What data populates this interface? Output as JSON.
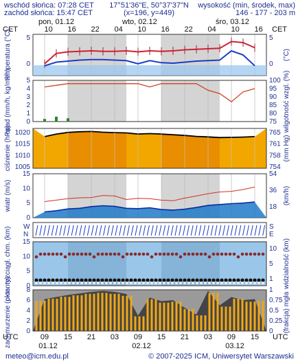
{
  "header": {
    "sunrise": "wschód słońca: 07:28 CET",
    "sunset": "zachód słońca: 15:47 CET",
    "coords": "17°51'36\"E, 50°37'37\"N",
    "grid": "(x=196, y=449)",
    "height_title": "wysokość (min, środek, max)",
    "height_values": "146 - 177 - 203 m"
  },
  "timezone_left": "CET",
  "timezone_right": "CET",
  "utc_left": "UTC",
  "utc_right": "UTC",
  "top_axis": {
    "days": [
      "pon, 01.12",
      "wto, 02.12",
      "śro, 03.12"
    ],
    "hours": [
      "10",
      "16",
      "22",
      "04",
      "10",
      "16",
      "22",
      "04",
      "10",
      "16"
    ]
  },
  "bottom_axis": {
    "hours": [
      "09",
      "15",
      "21",
      "03",
      "09",
      "15",
      "21",
      "03",
      "09",
      "15"
    ],
    "dates": [
      "01.12",
      "02.12",
      "03.12"
    ]
  },
  "footer": {
    "email": "meteo@icm.edu.pl",
    "copyright": "© 2007-2025 ICM, Uniwersytet Warszawski"
  },
  "colors": {
    "axis_text": "#1d2d8f",
    "temperature": "#cc2233",
    "dewpoint": "#1a3cc8",
    "pressure_fill": "#f2a600",
    "wind_fill": "#1f7ac8",
    "cloud_dark": "#444444",
    "precip_bar": "#f0a818",
    "humidity": "#d04020"
  },
  "chart_data": [
    {
      "type": "line",
      "name": "temperatura",
      "ylabel": "temperatura (°C)",
      "ylim": [
        -2,
        6
      ],
      "yticks": [
        "5",
        "0"
      ],
      "x_hours_utc": [
        9,
        12,
        15,
        18,
        21,
        24,
        27,
        30,
        33,
        36,
        39,
        42,
        45,
        48,
        51,
        54,
        57,
        60,
        63
      ],
      "series": [
        {
          "values": [
            0.3,
            2.3,
            2.6,
            2.7,
            2.8,
            2.7,
            2.7,
            2.8,
            2.6,
            2.8,
            2.7,
            2.8,
            3.0,
            3.1,
            3.2,
            3.3,
            4.6,
            4.4,
            3.4
          ]
        },
        {
          "values": [
            -0.1,
            0.6,
            0.8,
            1.0,
            1.1,
            1.1,
            1.0,
            0.9,
            0.3,
            0.9,
            0.5,
            0.4,
            0.6,
            0.8,
            0.9,
            1.0,
            2.8,
            2.0,
            -0.1
          ]
        }
      ]
    },
    {
      "type": "bar",
      "name": "opad",
      "ylabel": "opad (mm/h, kg/m²/h)",
      "y2label": "wilgotność wzgl. (%)",
      "ylim": [
        0,
        5
      ],
      "yticks": [
        "5",
        "4",
        "3",
        "2",
        "1",
        "0"
      ],
      "y2ticks": [
        "100",
        "95",
        "90",
        "85",
        "80",
        "75"
      ],
      "humidity": [
        96,
        97,
        98,
        98,
        98,
        98,
        98,
        98,
        98,
        96,
        98,
        98,
        98,
        98,
        94,
        92,
        87,
        93,
        95
      ],
      "precip": [
        0.08,
        0.15,
        0.1,
        0,
        0,
        0,
        0,
        0,
        0,
        0,
        0,
        0,
        0,
        0,
        0,
        0,
        0,
        0,
        0
      ]
    },
    {
      "type": "area",
      "name": "ciśnienie",
      "ylabel": "ciśnienie (hPa)",
      "y2label": "(mm Hg)",
      "ylim": [
        1005,
        1022
      ],
      "yticks": [
        "1020",
        "1015",
        "1010",
        "1005"
      ],
      "y2ticks": [
        "765",
        "761",
        "758",
        "754"
      ],
      "values": [
        1018.5,
        1019.6,
        1020.3,
        1020.6,
        1020.7,
        1020.4,
        1020.2,
        1020.1,
        1019.6,
        1019.8,
        1019.6,
        1019.3,
        1019.0,
        1018.6,
        1018.4,
        1018.1,
        1018.2,
        1018.3,
        1018.5
      ]
    },
    {
      "type": "area",
      "name": "wiatr",
      "ylabel": "wiatr (m/s)",
      "y2label": "(km/h)",
      "ylim": [
        0,
        15
      ],
      "yticks": [
        "15",
        "10",
        "5",
        "0"
      ],
      "y2ticks": [
        "54",
        "36",
        "18"
      ],
      "wind_speed": [
        2.0,
        2.4,
        3.0,
        3.2,
        3.8,
        4.1,
        3.9,
        3.2,
        3.1,
        3.4,
        2.8,
        2.6,
        2.9,
        3.5,
        4.2,
        4.5,
        4.8,
        5.0,
        5.4
      ],
      "gusts": [
        5.5,
        6.0,
        6.5,
        6.8,
        6.9,
        7.6,
        7.4,
        6.2,
        6.6,
        6.5,
        6.0,
        5.8,
        6.7,
        7.4,
        8.2,
        8.8,
        9.0,
        9.6,
        10.5
      ]
    },
    {
      "type": "scatter",
      "name": "zachmurzenie",
      "ylabel": "pion. rozciągł. chm. (km)",
      "y2label": "widzialność (km)",
      "ylim": [
        0,
        15
      ],
      "yticks": [
        "15",
        "10",
        "5",
        "0"
      ],
      "y2ticks": [
        "10",
        "5",
        "1"
      ],
      "cloud_oktas_ticks": [
        "8",
        "6",
        "4",
        "2",
        "0"
      ],
      "fog_ticks": [
        "1",
        "0.75",
        "0.5",
        "0.25",
        "0"
      ],
      "cloud_cover": [
        6.2,
        6.6,
        7.0,
        7.3,
        7.6,
        7.8,
        7.6,
        7.2,
        3.0,
        6.5,
        5.8,
        6.0,
        4.5,
        3.2,
        7.8,
        5.0,
        6.6,
        6.0,
        6.2
      ]
    }
  ]
}
